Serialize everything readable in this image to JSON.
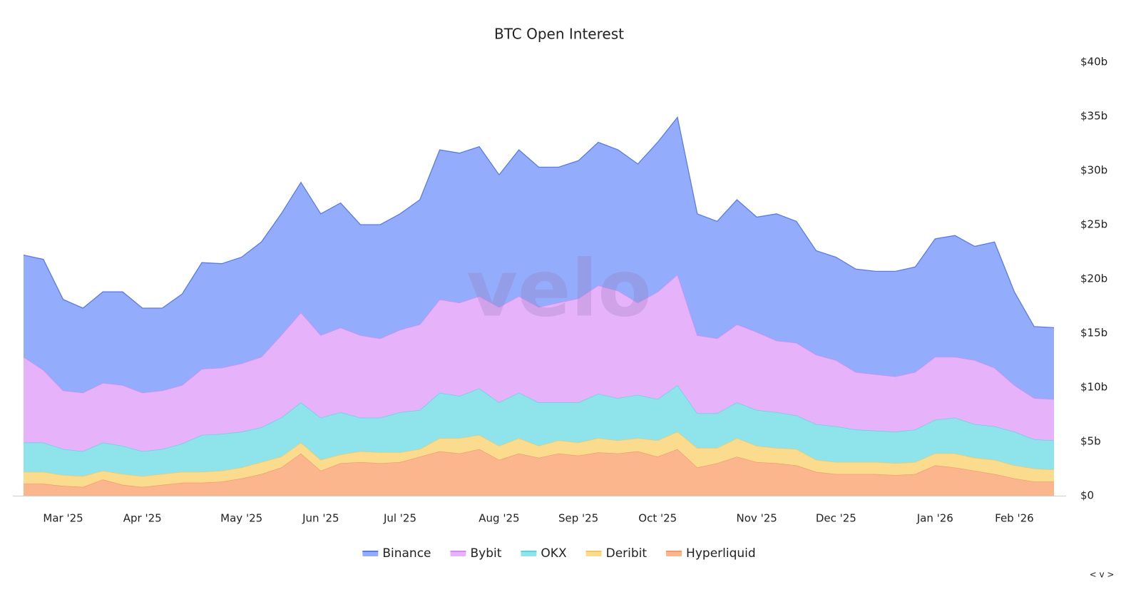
{
  "chart_data": {
    "type": "stacked-area",
    "title": "BTC Open Interest",
    "watermark": "velo",
    "control_label": "< v >",
    "categories": [
      null,
      null,
      "Mar '25",
      null,
      null,
      null,
      "Apr '25",
      null,
      null,
      null,
      null,
      "May '25",
      null,
      null,
      null,
      "Jun '25",
      null,
      null,
      null,
      "Jul '25",
      null,
      null,
      null,
      null,
      "Aug '25",
      null,
      null,
      null,
      "Sep '25",
      null,
      null,
      null,
      "Oct '25",
      null,
      null,
      null,
      null,
      "Nov '25",
      null,
      null,
      null,
      "Dec '25",
      null,
      null,
      null,
      null,
      "Jan '26",
      null,
      null,
      null,
      "Feb '26",
      null,
      null
    ],
    "ylim": [
      0,
      40
    ],
    "yticks": [
      {
        "value": 0,
        "label": "$0"
      },
      {
        "value": 5,
        "label": "$5b"
      },
      {
        "value": 10,
        "label": "$10b"
      },
      {
        "value": 15,
        "label": "$15b"
      },
      {
        "value": 20,
        "label": "$20b"
      },
      {
        "value": 25,
        "label": "$25b"
      },
      {
        "value": 30,
        "label": "$30b"
      },
      {
        "value": 35,
        "label": "$35b"
      },
      {
        "value": 40,
        "label": "$40b"
      }
    ],
    "grid": false,
    "legend": "bottom",
    "series": [
      {
        "name": "Hyperliquid",
        "color": "#fbb68e",
        "stroke": "#f39a6a",
        "values": [
          1.1,
          1.1,
          0.9,
          0.8,
          1.5,
          1.0,
          0.8,
          1.0,
          1.2,
          1.2,
          1.3,
          1.6,
          2.0,
          2.6,
          3.9,
          2.3,
          3.0,
          3.1,
          3.0,
          3.1,
          3.6,
          4.1,
          3.9,
          4.3,
          3.3,
          3.9,
          3.5,
          3.9,
          3.7,
          4.0,
          3.9,
          4.1,
          3.6,
          4.3,
          2.6,
          3.0,
          3.6,
          3.1,
          3.0,
          2.8,
          2.2,
          2.0,
          2.0,
          2.0,
          1.9,
          2.0,
          2.8,
          2.6,
          2.3,
          2.0,
          1.6,
          1.3,
          1.3
        ]
      },
      {
        "name": "Deribit",
        "color": "#fbdc8e",
        "stroke": "#f2c860",
        "values": [
          1.1,
          1.1,
          1.0,
          1.0,
          0.8,
          1.0,
          1.0,
          1.0,
          1.0,
          1.0,
          1.0,
          1.0,
          1.1,
          1.0,
          1.0,
          1.0,
          0.8,
          1.0,
          1.0,
          0.9,
          0.7,
          1.2,
          1.4,
          1.3,
          1.3,
          1.4,
          1.1,
          1.2,
          1.2,
          1.3,
          1.2,
          1.2,
          1.5,
          1.6,
          1.8,
          1.4,
          1.7,
          1.5,
          1.4,
          1.5,
          1.1,
          1.1,
          1.1,
          1.1,
          1.1,
          1.1,
          1.1,
          1.3,
          1.2,
          1.3,
          1.2,
          1.2,
          1.1
        ]
      },
      {
        "name": "OKX",
        "color": "#8fe3ea",
        "stroke": "#5fd2dc",
        "values": [
          2.7,
          2.7,
          2.4,
          2.3,
          2.6,
          2.6,
          2.3,
          2.3,
          2.6,
          3.4,
          3.4,
          3.3,
          3.2,
          3.6,
          3.7,
          3.9,
          3.9,
          3.1,
          3.2,
          3.7,
          3.6,
          4.2,
          3.9,
          4.3,
          4.0,
          4.2,
          4.0,
          3.5,
          3.7,
          4.1,
          3.9,
          4.0,
          3.8,
          4.3,
          3.2,
          3.2,
          3.3,
          3.3,
          3.3,
          3.1,
          3.3,
          3.3,
          3.0,
          2.9,
          2.9,
          3.0,
          3.1,
          3.3,
          3.1,
          3.1,
          3.1,
          2.7,
          2.7
        ]
      },
      {
        "name": "Bybit",
        "color": "#e6b3fb",
        "stroke": "#d68af5",
        "values": [
          7.9,
          6.7,
          5.4,
          5.4,
          5.5,
          5.6,
          5.4,
          5.4,
          5.4,
          6.1,
          6.1,
          6.3,
          6.5,
          7.6,
          8.3,
          7.6,
          7.8,
          7.6,
          7.3,
          7.6,
          7.9,
          8.6,
          8.6,
          8.5,
          8.8,
          8.9,
          8.8,
          9.2,
          9.6,
          10.0,
          9.9,
          8.5,
          9.9,
          10.2,
          7.2,
          6.9,
          7.2,
          7.2,
          6.6,
          6.7,
          6.4,
          6.1,
          5.3,
          5.2,
          5.1,
          5.3,
          5.8,
          5.6,
          5.9,
          5.4,
          4.3,
          3.8,
          3.8
        ]
      },
      {
        "name": "Binance",
        "color": "#93acfb",
        "stroke": "#5b7be8",
        "values": [
          9.4,
          10.2,
          8.4,
          7.8,
          8.4,
          8.6,
          7.8,
          7.6,
          8.4,
          9.8,
          9.6,
          9.8,
          10.6,
          11.2,
          12.0,
          11.2,
          11.5,
          10.2,
          10.5,
          10.7,
          11.5,
          13.8,
          13.8,
          13.8,
          12.2,
          13.5,
          12.9,
          12.5,
          12.7,
          13.2,
          13.0,
          12.8,
          13.8,
          14.5,
          11.2,
          10.8,
          11.5,
          10.6,
          11.7,
          11.2,
          9.6,
          9.5,
          9.5,
          9.5,
          9.7,
          9.7,
          10.9,
          11.2,
          10.5,
          11.6,
          8.6,
          6.6,
          6.6
        ]
      }
    ]
  }
}
